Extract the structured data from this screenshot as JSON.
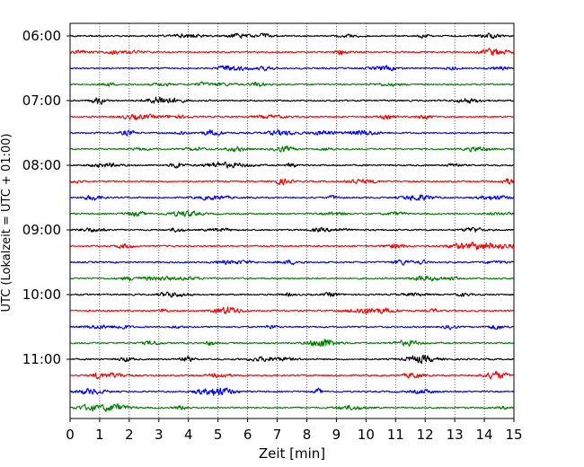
{
  "chart_data": {
    "type": "line",
    "title": "",
    "xlabel": "Zeit  [min]",
    "ylabel": "UTC (Lokalzeit = UTC + 01:00)",
    "xlim": [
      0,
      15
    ],
    "x_ticks": [
      0,
      1,
      2,
      3,
      4,
      5,
      6,
      7,
      8,
      9,
      10,
      11,
      12,
      13,
      14,
      15
    ],
    "y_tick_labels": [
      "06:00",
      "07:00",
      "08:00",
      "09:00",
      "10:00",
      "11:00"
    ],
    "y_tick_rows": [
      0,
      4,
      8,
      12,
      16,
      20
    ],
    "grid_x": "dotted vertical lines at each minute",
    "trace_colors": [
      "#000000",
      "#ff0000",
      "#0000ff",
      "#007f00"
    ],
    "traces": [
      {
        "start": "06:00",
        "color": "#000000"
      },
      {
        "start": "06:15",
        "color": "#ff0000"
      },
      {
        "start": "06:30",
        "color": "#0000ff"
      },
      {
        "start": "06:45",
        "color": "#007f00"
      },
      {
        "start": "07:00",
        "color": "#000000"
      },
      {
        "start": "07:15",
        "color": "#ff0000"
      },
      {
        "start": "07:30",
        "color": "#0000ff"
      },
      {
        "start": "07:45",
        "color": "#007f00"
      },
      {
        "start": "08:00",
        "color": "#000000"
      },
      {
        "start": "08:15",
        "color": "#ff0000"
      },
      {
        "start": "08:30",
        "color": "#0000ff"
      },
      {
        "start": "08:45",
        "color": "#007f00"
      },
      {
        "start": "09:00",
        "color": "#000000"
      },
      {
        "start": "09:15",
        "color": "#ff0000"
      },
      {
        "start": "09:30",
        "color": "#0000ff"
      },
      {
        "start": "09:45",
        "color": "#007f00"
      },
      {
        "start": "10:00",
        "color": "#000000"
      },
      {
        "start": "10:15",
        "color": "#ff0000"
      },
      {
        "start": "10:30",
        "color": "#0000ff"
      },
      {
        "start": "10:45",
        "color": "#007f00"
      },
      {
        "start": "11:00",
        "color": "#000000"
      },
      {
        "start": "11:15",
        "color": "#ff0000"
      },
      {
        "start": "11:30",
        "color": "#0000ff"
      },
      {
        "start": "11:45",
        "color": "#007f00"
      }
    ]
  }
}
